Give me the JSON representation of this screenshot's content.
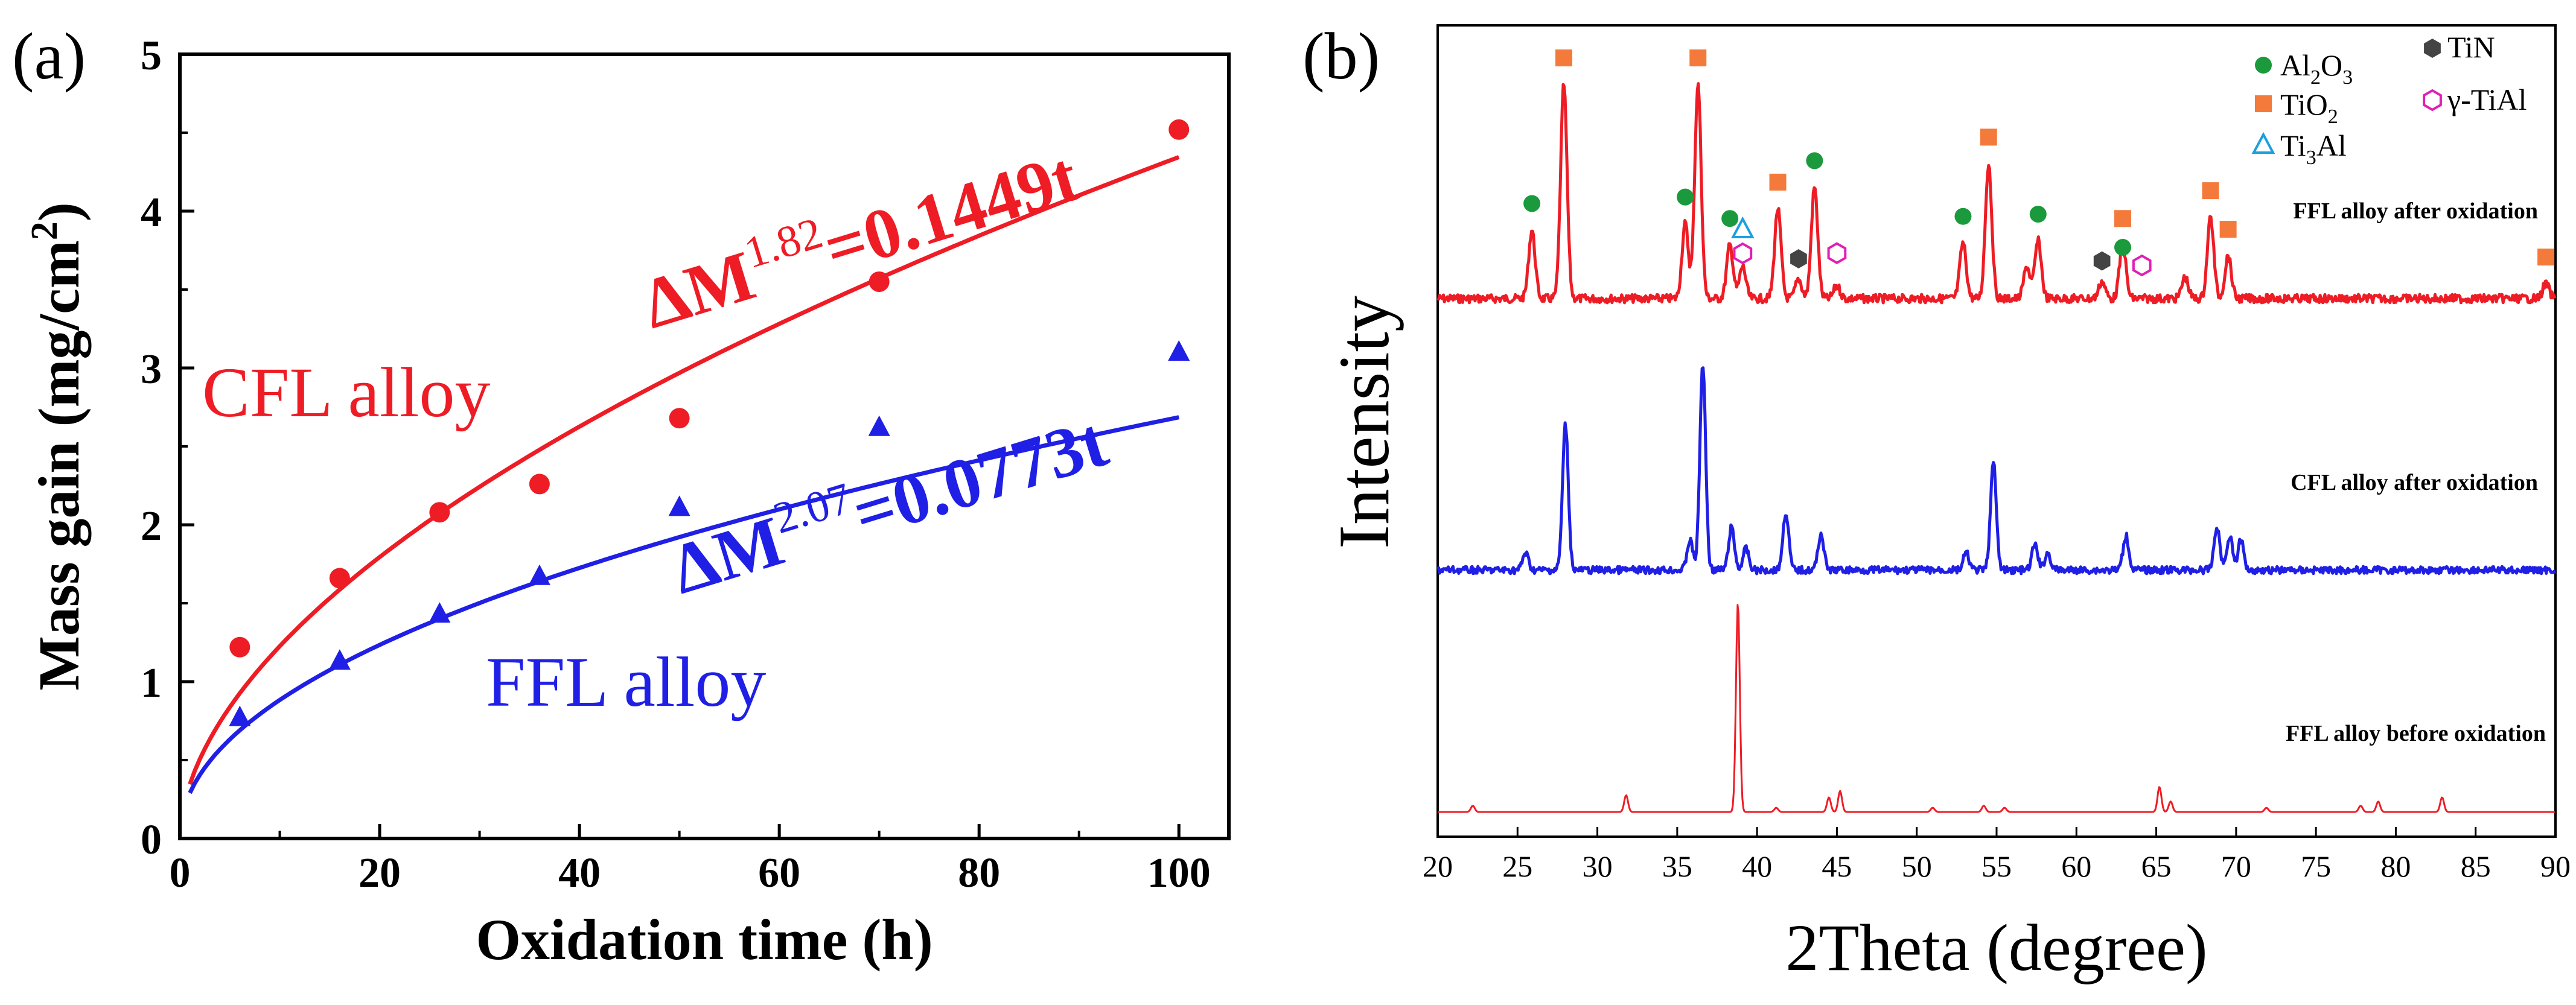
{
  "figure": {
    "panels": [
      {
        "label": "(a)"
      },
      {
        "label": "(b)"
      }
    ]
  },
  "colors": {
    "cfl": "#ee1c25",
    "ffl": "#1f1fe6",
    "tio2": "#f47a3c",
    "al2o3": "#1a9a3c",
    "tin": "#444444",
    "ti3al": "#1aa0e0",
    "gamma_tial": "#e01fb4",
    "before": "#ee1c25"
  },
  "chart_data": [
    {
      "type": "scatter",
      "panel": "(a)",
      "xlabel": "Oxidation time (h)",
      "ylabel": "Mass gain (mg/cm",
      "ylabel_sup": "2",
      "ylabel_end": ")",
      "xlim": [
        0,
        105
      ],
      "ylim": [
        0,
        5
      ],
      "x_ticks": [
        "0",
        "20",
        "40",
        "60",
        "80",
        "100"
      ],
      "y_ticks": [
        "0",
        "1",
        "2",
        "3",
        "4",
        "5"
      ],
      "series": [
        {
          "name": "CFL alloy",
          "label": "CFL alloy",
          "marker": "circle",
          "x": [
            6,
            16,
            26,
            36,
            50,
            70,
            100
          ],
          "y": [
            1.22,
            1.66,
            2.08,
            2.26,
            2.68,
            3.55,
            4.52
          ],
          "fit": {
            "exponent": 1.82,
            "k": 0.1449
          },
          "eq_main": "ΔM",
          "eq_sup": "1.82",
          "eq_rest": "=0.1449t"
        },
        {
          "name": "FFL alloy",
          "label": "FFL alloy",
          "marker": "triangle",
          "x": [
            6,
            16,
            26,
            36,
            50,
            70,
            100
          ],
          "y": [
            0.77,
            1.13,
            1.43,
            1.67,
            2.11,
            2.62,
            3.1
          ],
          "fit": {
            "exponent": 2.07,
            "k": 0.0773
          },
          "eq_main": "ΔM",
          "eq_sup": "2.07",
          "eq_rest": "=0.0773t"
        }
      ]
    },
    {
      "type": "line",
      "panel": "(b)",
      "xlabel": "2Theta (degree)",
      "ylabel": "Intensity",
      "xlim": [
        20,
        90
      ],
      "x_ticks": [
        "20",
        "25",
        "30",
        "35",
        "40",
        "45",
        "50",
        "55",
        "60",
        "65",
        "70",
        "75",
        "80",
        "85",
        "90"
      ],
      "series": [
        {
          "name": "FFL alloy after oxidation",
          "label": "FFL alloy after oxidation",
          "peaks": [
            [
              25.9,
              0.32
            ],
            [
              27.9,
              1.0
            ],
            [
              35.5,
              0.35
            ],
            [
              36.3,
              1.0
            ],
            [
              38.3,
              0.25
            ],
            [
              39.1,
              0.15
            ],
            [
              41.3,
              0.42
            ],
            [
              42.6,
              0.09
            ],
            [
              43.6,
              0.52
            ],
            [
              45.0,
              0.06
            ],
            [
              52.9,
              0.26
            ],
            [
              54.5,
              0.63
            ],
            [
              56.9,
              0.15
            ],
            [
              57.6,
              0.27
            ],
            [
              61.6,
              0.08
            ],
            [
              62.9,
              0.25
            ],
            [
              66.8,
              0.1
            ],
            [
              68.4,
              0.38
            ],
            [
              69.5,
              0.2
            ],
            [
              89.4,
              0.07
            ]
          ]
        },
        {
          "name": "CFL alloy after oxidation",
          "label": "CFL alloy after oxidation",
          "peaks": [
            [
              25.5,
              0.08
            ],
            [
              28.0,
              0.68
            ],
            [
              35.8,
              0.14
            ],
            [
              36.6,
              0.96
            ],
            [
              38.4,
              0.2
            ],
            [
              39.3,
              0.1
            ],
            [
              41.8,
              0.27
            ],
            [
              44.0,
              0.17
            ],
            [
              53.1,
              0.08
            ],
            [
              54.8,
              0.5
            ],
            [
              57.4,
              0.12
            ],
            [
              58.2,
              0.08
            ],
            [
              63.1,
              0.16
            ],
            [
              68.8,
              0.2
            ],
            [
              69.6,
              0.16
            ],
            [
              70.3,
              0.14
            ]
          ]
        },
        {
          "name": "FFL alloy before oxidation",
          "label": "FFL alloy before oxidation",
          "peaks": [
            [
              22.2,
              0.03
            ],
            [
              31.8,
              0.08
            ],
            [
              38.8,
              1.0
            ],
            [
              41.2,
              0.02
            ],
            [
              44.5,
              0.07
            ],
            [
              45.2,
              0.1
            ],
            [
              51.0,
              0.02
            ],
            [
              54.2,
              0.03
            ],
            [
              55.5,
              0.02
            ],
            [
              65.2,
              0.12
            ],
            [
              65.9,
              0.05
            ],
            [
              71.9,
              0.02
            ],
            [
              77.8,
              0.03
            ],
            [
              78.9,
              0.05
            ],
            [
              82.9,
              0.07
            ]
          ]
        }
      ],
      "phase_markers": [
        {
          "phase": "TiO2",
          "shape": "square",
          "pos": [
            27.9,
            36.3,
            41.3,
            54.5,
            62.9,
            68.4,
            69.5,
            89.4
          ]
        },
        {
          "phase": "Al2O3",
          "shape": "circle",
          "pos": [
            25.9,
            35.5,
            38.3,
            43.6,
            52.9,
            57.6,
            62.9
          ]
        },
        {
          "phase": "TiN",
          "shape": "hexagon",
          "pos": [
            42.6,
            61.6
          ]
        },
        {
          "phase": "Ti3Al",
          "shape": "triangle",
          "pos": [
            39.1
          ]
        },
        {
          "phase": "γ-TiAl",
          "shape": "hexagon-outline",
          "pos": [
            39.1,
            45.0,
            64.1
          ]
        }
      ],
      "legend": [
        {
          "shape": "circle",
          "text": "Al",
          "sub1": "2",
          "mid": "O",
          "sub2": "3"
        },
        {
          "shape": "hexagon",
          "text": "TiN",
          "sub1": "",
          "mid": "",
          "sub2": ""
        },
        {
          "shape": "square",
          "text": "TiO",
          "sub1": "2",
          "mid": "",
          "sub2": ""
        },
        {
          "shape": "hexagon-outline",
          "text": "γ-TiAl",
          "sub1": "",
          "mid": "",
          "sub2": ""
        },
        {
          "shape": "triangle",
          "text": "Ti",
          "sub1": "3",
          "mid": "Al",
          "sub2": ""
        }
      ]
    }
  ]
}
